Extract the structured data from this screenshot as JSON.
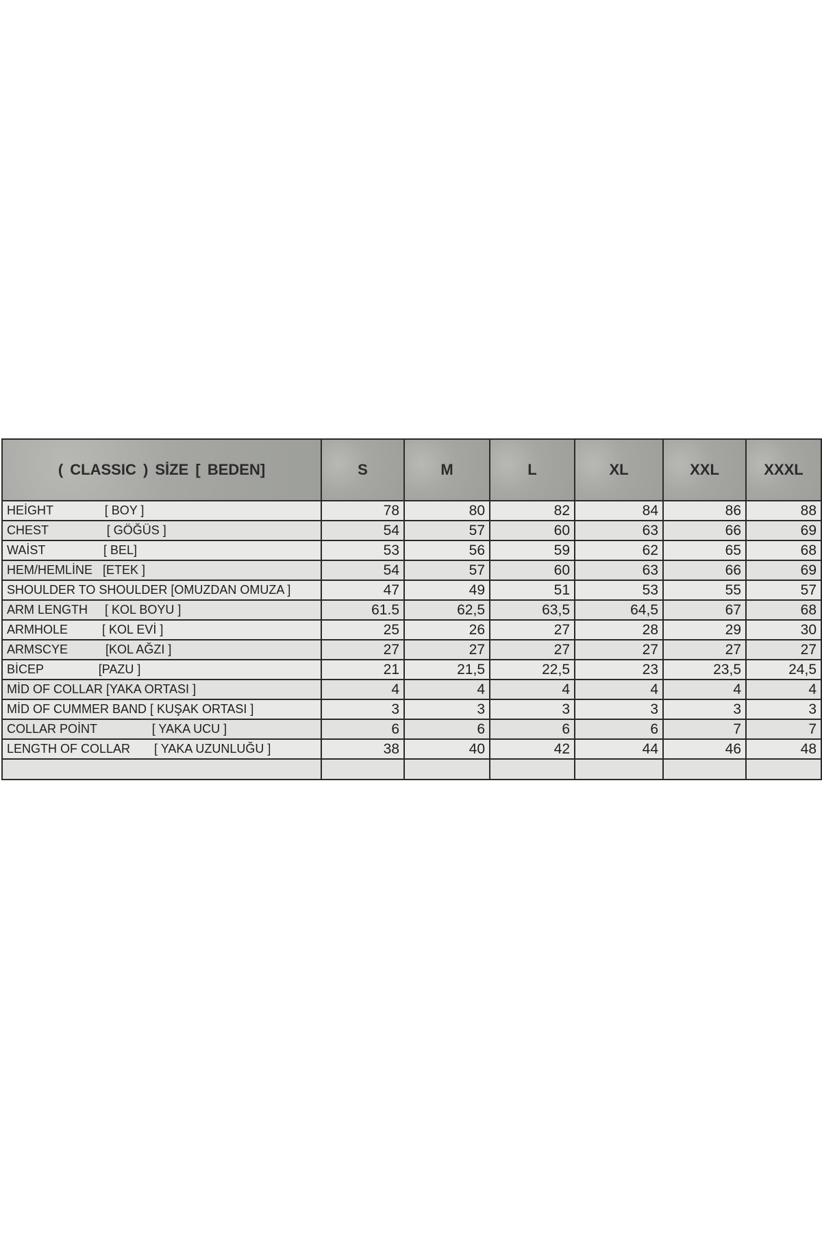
{
  "table": {
    "header_title": "( CLASSIC )   SİZE       [ BEDEN]",
    "sizes": [
      "S",
      "M",
      "L",
      "XL",
      "XXL",
      "XXXL"
    ],
    "rows": [
      {
        "label": "HEİGHT               [ BOY ]",
        "values": [
          "78",
          "80",
          "82",
          "84",
          "86",
          "88"
        ]
      },
      {
        "label": "CHEST                 [ GÖĞÜS ]",
        "values": [
          "54",
          "57",
          "60",
          "63",
          "66",
          "69"
        ]
      },
      {
        "label": "WAİST                 [ BEL]",
        "values": [
          "53",
          "56",
          "59",
          "62",
          "65",
          "68"
        ]
      },
      {
        "label": "HEM/HEMLİNE   [ETEK ]",
        "values": [
          "54",
          "57",
          "60",
          "63",
          "66",
          "69"
        ]
      },
      {
        "label": "SHOULDER TO SHOULDER [OMUZDAN OMUZA ]",
        "values": [
          "47",
          "49",
          "51",
          "53",
          "55",
          "57"
        ]
      },
      {
        "label": "ARM LENGTH     [ KOL BOYU ]",
        "values": [
          "61.5",
          "62,5",
          "63,5",
          "64,5",
          "67",
          "68"
        ]
      },
      {
        "label": "ARMHOLE          [ KOL EVİ ]",
        "values": [
          "25",
          "26",
          "27",
          "28",
          "29",
          "30"
        ]
      },
      {
        "label": "ARMSCYE           [KOL AĞZI ]",
        "values": [
          "27",
          "27",
          "27",
          "27",
          "27",
          "27"
        ]
      },
      {
        "label": "BİCEP                [PAZU ]",
        "values": [
          "21",
          "21,5",
          "22,5",
          "23",
          "23,5",
          "24,5"
        ]
      },
      {
        "label": "MİD OF COLLAR [YAKA ORTASI ]",
        "values": [
          "4",
          "4",
          "4",
          "4",
          "4",
          "4"
        ]
      },
      {
        "label": "MİD OF CUMMER BAND [ KUŞAK ORTASI ]",
        "values": [
          "3",
          "3",
          "3",
          "3",
          "3",
          "3"
        ]
      },
      {
        "label": "COLLAR POİNT                [ YAKA UCU ]",
        "values": [
          "6",
          "6",
          "6",
          "6",
          "7",
          "7"
        ]
      },
      {
        "label": "LENGTH OF COLLAR       [ YAKA UZUNLUĞU ]",
        "values": [
          "38",
          "40",
          "42",
          "44",
          "46",
          "48"
        ]
      }
    ]
  }
}
